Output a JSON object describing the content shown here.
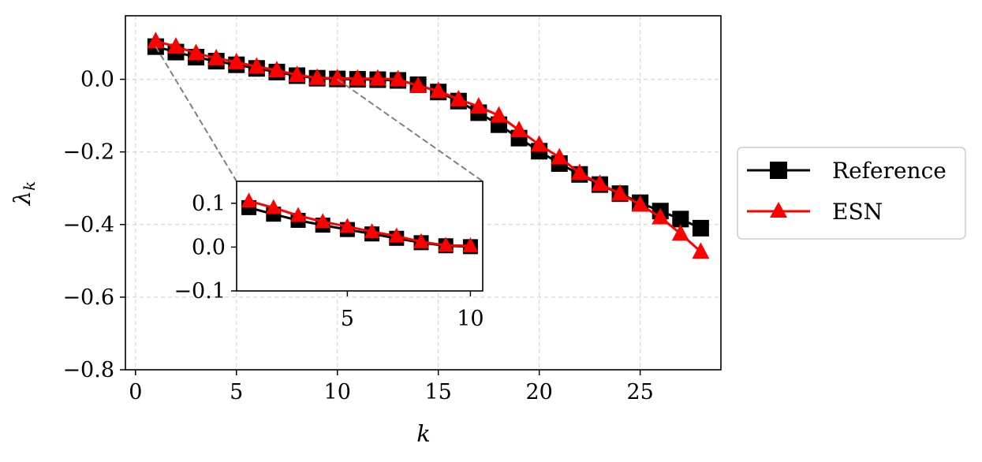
{
  "chart_data": {
    "type": "line",
    "xlabel": "k",
    "ylabel": "λ_k",
    "ylabel_parts": {
      "base": "λ",
      "sub": "k"
    },
    "xlim": [
      -0.5,
      29
    ],
    "ylim": [
      -0.8,
      0.175
    ],
    "xticks": [
      "0",
      "5",
      "10",
      "15",
      "20",
      "25"
    ],
    "xtick_values": [
      0,
      5,
      10,
      15,
      20,
      25
    ],
    "yticks": [
      "0.0",
      "−0.2",
      "−0.4",
      "−0.6",
      "−0.8"
    ],
    "ytick_values": [
      0.0,
      -0.2,
      -0.4,
      -0.6,
      -0.8
    ],
    "grid": true,
    "legend_position": "right-outside",
    "series": [
      {
        "name": "Reference",
        "color": "#000000",
        "marker": "square",
        "x": [
          1,
          2,
          3,
          4,
          5,
          6,
          7,
          8,
          9,
          10,
          11,
          12,
          13,
          14,
          15,
          16,
          17,
          18,
          19,
          20,
          21,
          22,
          23,
          24,
          25,
          26,
          27,
          28
        ],
        "y": [
          0.09,
          0.075,
          0.061,
          0.05,
          0.04,
          0.03,
          0.02,
          0.01,
          0.003,
          0.001,
          0.0,
          -0.001,
          -0.003,
          -0.015,
          -0.035,
          -0.06,
          -0.092,
          -0.125,
          -0.162,
          -0.198,
          -0.232,
          -0.262,
          -0.29,
          -0.315,
          -0.34,
          -0.363,
          -0.385,
          -0.41
        ]
      },
      {
        "name": "ESN",
        "color": "#ff0000",
        "marker": "triangle",
        "x": [
          1,
          2,
          3,
          4,
          5,
          6,
          7,
          8,
          9,
          10,
          11,
          12,
          13,
          14,
          15,
          16,
          17,
          18,
          19,
          20,
          21,
          22,
          23,
          24,
          25,
          26,
          27,
          28
        ],
        "y": [
          0.105,
          0.09,
          0.072,
          0.058,
          0.047,
          0.035,
          0.025,
          0.012,
          0.004,
          0.003,
          0.002,
          0.002,
          0.0,
          -0.018,
          -0.032,
          -0.055,
          -0.075,
          -0.1,
          -0.14,
          -0.18,
          -0.215,
          -0.258,
          -0.288,
          -0.315,
          -0.345,
          -0.38,
          -0.425,
          -0.475
        ]
      }
    ],
    "inset": {
      "xlim": [
        0.5,
        10.5
      ],
      "ylim": [
        -0.1,
        0.15
      ],
      "xticks": [
        "5",
        "10"
      ],
      "xtick_values": [
        5,
        10
      ],
      "yticks": [
        "0.1",
        "0.0",
        "−0.1"
      ],
      "ytick_values": [
        0.1,
        0.0,
        -0.1
      ],
      "series_x_max": 10,
      "zoom_region": {
        "x": [
          1,
          10
        ],
        "y": [
          0.0,
          0.09
        ]
      }
    }
  }
}
